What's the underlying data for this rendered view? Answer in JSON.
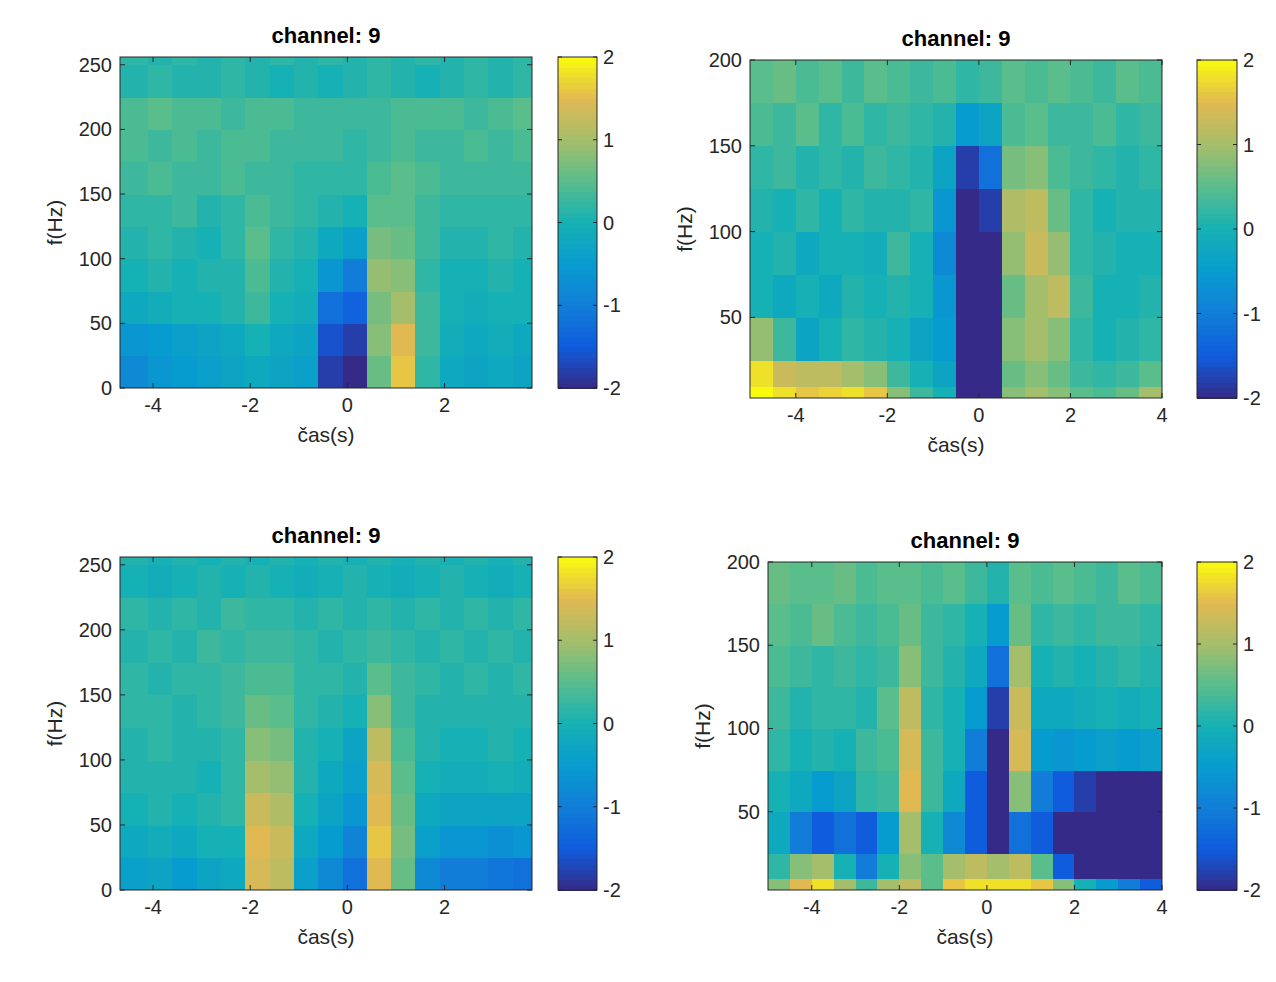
{
  "chart_data": [
    {
      "type": "heatmap",
      "title": "channel: 9",
      "x_label": "čas(s)",
      "y_label": "f(Hz)",
      "xlim": [
        -4.68,
        3.8
      ],
      "ylim": [
        0,
        256
      ],
      "xticks": [
        -4,
        -2,
        0,
        2
      ],
      "yticks": [
        0,
        50,
        100,
        150,
        200,
        250
      ],
      "x_edges": [
        -4.68,
        -4.1,
        -3.6,
        -3.1,
        -2.6,
        -2.1,
        -1.6,
        -1.1,
        -0.6,
        -0.1,
        0.4,
        0.9,
        1.4,
        1.9,
        2.4,
        2.9,
        3.4,
        3.8
      ],
      "y_edges": [
        0,
        25,
        50,
        75,
        100,
        125,
        150,
        175,
        200,
        225,
        250,
        256
      ],
      "cells": [
        [
          -0.8,
          -0.6,
          -0.5,
          -0.4,
          -0.3,
          -0.2,
          -0.3,
          -0.4,
          -1.8,
          -2,
          0.6,
          1.6,
          0.2,
          -0.2,
          -0.3,
          -0.2,
          -0.3
        ],
        [
          -0.6,
          -0.5,
          -0.4,
          -0.3,
          -0.2,
          0,
          -0.2,
          -0.3,
          -1.6,
          -1.8,
          0.8,
          1.5,
          0.3,
          -0.1,
          -0.2,
          -0.1,
          -0.2
        ],
        [
          -0.2,
          -0.1,
          0,
          0,
          0.1,
          0.3,
          0,
          -0.1,
          -1.2,
          -1.4,
          0.7,
          1,
          0.3,
          0,
          -0.1,
          0,
          0
        ],
        [
          0,
          0.1,
          0,
          0.1,
          0.1,
          0.4,
          0.1,
          0,
          -0.6,
          -1,
          0.9,
          0.8,
          0.2,
          0,
          0,
          0.1,
          0
        ],
        [
          0.1,
          0.2,
          0.1,
          0,
          0.2,
          0.5,
          0.2,
          0.1,
          -0.2,
          -0.4,
          0.7,
          0.6,
          0.3,
          0.1,
          0.1,
          0.2,
          0.1
        ],
        [
          0.2,
          0.2,
          0.3,
          0.1,
          0.2,
          0.4,
          0.3,
          0.2,
          0.1,
          0,
          0.5,
          0.5,
          0.3,
          0.2,
          0.2,
          0.2,
          0.2
        ],
        [
          0.3,
          0.4,
          0.3,
          0.3,
          0.4,
          0.3,
          0.3,
          0.2,
          0.2,
          0.2,
          0.4,
          0.5,
          0.4,
          0.3,
          0.3,
          0.3,
          0.3
        ],
        [
          0.4,
          0.3,
          0.4,
          0.3,
          0.4,
          0.4,
          0.3,
          0.3,
          0.3,
          0.2,
          0.3,
          0.4,
          0.3,
          0.3,
          0.4,
          0.3,
          0.4
        ],
        [
          0.4,
          0.5,
          0.4,
          0.4,
          0.3,
          0.4,
          0.4,
          0.3,
          0.3,
          0.3,
          0.3,
          0.4,
          0.4,
          0.4,
          0.3,
          0.4,
          0.5
        ],
        [
          0.1,
          0.2,
          0.1,
          0.1,
          0.2,
          0.1,
          0,
          0.1,
          0,
          0.1,
          0.2,
          0.1,
          0,
          0.1,
          0.2,
          0.1,
          0.2
        ],
        [
          0.2,
          0.1,
          0.2,
          0.1,
          0.2,
          0.1,
          0.2,
          0.1,
          0.2,
          0.1,
          0.2,
          0.1,
          0.2,
          0.1,
          0.2,
          0.1,
          0.2
        ]
      ],
      "clim": [
        -2,
        2
      ],
      "cticks": [
        -2,
        -1,
        0,
        1,
        2
      ]
    },
    {
      "type": "heatmap",
      "title": "channel: 9",
      "x_label": "čas(s)",
      "y_label": "f(Hz)",
      "xlim": [
        -5,
        4
      ],
      "ylim": [
        3,
        200
      ],
      "xticks": [
        -4,
        -2,
        0,
        2,
        4
      ],
      "yticks": [
        50,
        100,
        150,
        200
      ],
      "x_edges": [
        -5,
        -4.5,
        -4,
        -3.5,
        -3,
        -2.5,
        -2,
        -1.5,
        -1,
        -0.5,
        0,
        0.5,
        1,
        1.5,
        2,
        2.5,
        3,
        3.5,
        4
      ],
      "y_edges": [
        3,
        10,
        25,
        50,
        75,
        100,
        125,
        150,
        175,
        200
      ],
      "cells": [
        [
          2,
          1.8,
          1.6,
          1.7,
          1.8,
          1.6,
          0.8,
          0.3,
          0,
          -2,
          -2,
          0.8,
          1,
          0.8,
          0.5,
          0.4,
          0.6,
          1
        ],
        [
          1.8,
          1.3,
          1.2,
          1.2,
          1,
          0.8,
          0.3,
          0,
          -0.3,
          -2,
          -2,
          0.6,
          0.8,
          0.6,
          0.3,
          0.2,
          0.3,
          0.5
        ],
        [
          0.9,
          0.3,
          -0.3,
          0,
          0.2,
          0.1,
          0,
          -0.3,
          -0.5,
          -2,
          -2,
          0.8,
          1,
          0.8,
          0.2,
          0,
          0.1,
          0.2
        ],
        [
          0,
          -0.2,
          0,
          -0.2,
          0.1,
          0,
          0.1,
          0,
          -0.6,
          -2,
          -2,
          0.6,
          1,
          1.2,
          0.3,
          0,
          0,
          0.1
        ],
        [
          0,
          0.1,
          -0.2,
          0,
          0,
          -0.1,
          0.3,
          0,
          -0.8,
          -2,
          -2,
          0.9,
          1.3,
          0.9,
          0.2,
          0.1,
          0,
          0
        ],
        [
          0.1,
          0,
          0.2,
          0,
          0.2,
          0.1,
          0.1,
          0.2,
          -0.6,
          -2,
          -1.8,
          1.1,
          1.2,
          0.6,
          0.2,
          0,
          0.1,
          0.1
        ],
        [
          0.2,
          0.3,
          0.1,
          0.2,
          0.1,
          0.3,
          0.2,
          0.1,
          -0.3,
          -1.8,
          -1.2,
          0.7,
          0.8,
          0.4,
          0.3,
          0.2,
          0.1,
          0.2
        ],
        [
          0.4,
          0.3,
          0.5,
          0.2,
          0.4,
          0.2,
          0.3,
          0.2,
          0.1,
          -0.5,
          -0.3,
          0.4,
          0.5,
          0.3,
          0.3,
          0.4,
          0.2,
          0.3
        ],
        [
          0.5,
          0.6,
          0.4,
          0.5,
          0.3,
          0.5,
          0.4,
          0.3,
          0.4,
          0.2,
          0.3,
          0.5,
          0.4,
          0.5,
          0.4,
          0.3,
          0.5,
          0.4
        ]
      ],
      "clim": [
        -2,
        2
      ],
      "cticks": [
        -2,
        -1,
        0,
        1,
        2
      ]
    },
    {
      "type": "heatmap",
      "title": "channel: 9",
      "x_label": "čas(s)",
      "y_label": "f(Hz)",
      "xlim": [
        -4.68,
        3.8
      ],
      "ylim": [
        0,
        256
      ],
      "xticks": [
        -4,
        -2,
        0,
        2
      ],
      "yticks": [
        0,
        50,
        100,
        150,
        200,
        250
      ],
      "x_edges": [
        -4.68,
        -4.1,
        -3.6,
        -3.1,
        -2.6,
        -2.1,
        -1.6,
        -1.1,
        -0.6,
        -0.1,
        0.4,
        0.9,
        1.4,
        1.9,
        2.4,
        2.9,
        3.4,
        3.8
      ],
      "y_edges": [
        0,
        25,
        50,
        75,
        100,
        125,
        150,
        175,
        200,
        225,
        250,
        256
      ],
      "cells": [
        [
          -0.4,
          -0.3,
          -0.5,
          -0.3,
          -0.2,
          1.4,
          1.2,
          -0.4,
          -0.8,
          -1.2,
          1.5,
          0.6,
          -0.8,
          -1,
          -1,
          -1.1,
          -1.2
        ],
        [
          -0.2,
          -0.1,
          -0.2,
          0,
          0,
          1.5,
          1.3,
          -0.2,
          -0.5,
          -0.9,
          1.6,
          0.7,
          -0.4,
          -0.6,
          -0.6,
          -0.7,
          -0.6
        ],
        [
          0,
          0.1,
          0,
          0.1,
          0.2,
          1.3,
          1.1,
          0,
          -0.3,
          -0.6,
          1.5,
          0.6,
          -0.2,
          -0.3,
          -0.3,
          -0.3,
          -0.3
        ],
        [
          0.1,
          0.1,
          0.1,
          0,
          0.2,
          1,
          0.9,
          0.1,
          -0.2,
          -0.4,
          1.4,
          0.5,
          0,
          -0.1,
          -0.1,
          0,
          -0.1
        ],
        [
          0.1,
          0.2,
          0.1,
          0.1,
          0.2,
          0.8,
          0.7,
          0.1,
          0,
          -0.3,
          1.2,
          0.4,
          0.1,
          0,
          0,
          0.1,
          0
        ],
        [
          0.2,
          0.2,
          0.1,
          0.2,
          0.3,
          0.6,
          0.5,
          0.2,
          0.1,
          0,
          0.8,
          0.3,
          0.1,
          0.1,
          0.1,
          0.1,
          0.1
        ],
        [
          0.2,
          0.1,
          0.2,
          0.2,
          0.3,
          0.4,
          0.4,
          0.2,
          0.2,
          0.1,
          0.5,
          0.3,
          0.2,
          0.1,
          0.2,
          0.1,
          0.2
        ],
        [
          0.1,
          0.2,
          0.1,
          0.3,
          0.2,
          0.3,
          0.3,
          0.2,
          0.1,
          0.2,
          0.3,
          0.2,
          0.1,
          0.2,
          0.1,
          0.2,
          0.1
        ],
        [
          0.2,
          0.1,
          0.2,
          0.1,
          0.3,
          0.2,
          0.2,
          0.1,
          0.2,
          0.1,
          0.2,
          0.1,
          0.2,
          0.1,
          0.2,
          0.1,
          0.2
        ],
        [
          0,
          -0.1,
          0,
          0.1,
          0,
          0.1,
          0,
          -0.1,
          0,
          0.1,
          0,
          -0.1,
          0,
          0.1,
          0,
          -0.1,
          0
        ],
        [
          0.1,
          0,
          0.1,
          0,
          0.1,
          0,
          0.1,
          0,
          0.1,
          0,
          0.1,
          0,
          0.1,
          0,
          0.1,
          0,
          0.1
        ]
      ],
      "clim": [
        -2,
        2
      ],
      "cticks": [
        -2,
        -1,
        0,
        1,
        2
      ]
    },
    {
      "type": "heatmap",
      "title": "channel: 9",
      "x_label": "čas(s)",
      "y_label": "f(Hz)",
      "xlim": [
        -5,
        4
      ],
      "ylim": [
        3,
        200
      ],
      "xticks": [
        -4,
        -2,
        0,
        2,
        4
      ],
      "yticks": [
        50,
        100,
        150,
        200
      ],
      "x_edges": [
        -5,
        -4.5,
        -4,
        -3.5,
        -3,
        -2.5,
        -2,
        -1.5,
        -1,
        -0.5,
        0,
        0.5,
        1,
        1.5,
        2,
        2.5,
        3,
        3.5,
        4
      ],
      "y_edges": [
        3,
        10,
        25,
        50,
        75,
        100,
        125,
        150,
        175,
        200
      ],
      "cells": [
        [
          0.8,
          1.5,
          1.8,
          1,
          0.3,
          1,
          1.2,
          0.5,
          1.6,
          1.8,
          1.8,
          1.8,
          1.6,
          0.8,
          0,
          -0.5,
          -1,
          -1.5
        ],
        [
          0.2,
          0.8,
          1,
          0,
          -1,
          0,
          0.8,
          0.5,
          1,
          1.2,
          1,
          1.2,
          0.5,
          -1.5,
          -2,
          -2,
          -2,
          -2
        ],
        [
          -0.2,
          -1,
          -1.5,
          -1.2,
          -1.5,
          -0.5,
          1,
          0,
          -0.8,
          -1.5,
          -2,
          -1.2,
          -1.5,
          -2,
          -2,
          -2,
          -2,
          -2
        ],
        [
          0,
          -0.2,
          -0.5,
          -0.3,
          0.2,
          0.3,
          1.5,
          0.3,
          -0.2,
          -1.5,
          -2,
          0.8,
          -1,
          -1.5,
          -1.8,
          -2,
          -2,
          -2
        ],
        [
          0.2,
          0,
          0.1,
          0,
          0.3,
          0.4,
          1.4,
          0.3,
          0,
          -1,
          -2,
          1.4,
          -0.5,
          -0.6,
          -0.5,
          -0.4,
          -0.5,
          -0.4
        ],
        [
          0.3,
          0.1,
          0.2,
          0.2,
          0.1,
          0.5,
          1.2,
          0.2,
          0,
          -0.5,
          -1.8,
          1.3,
          -0.2,
          -0.2,
          -0.1,
          0,
          -0.1,
          0
        ],
        [
          0.4,
          0.3,
          0.2,
          0.3,
          0.2,
          0.3,
          0.8,
          0.3,
          0.1,
          -0.2,
          -1.2,
          1,
          0,
          0.1,
          0,
          0.1,
          0.2,
          0.1
        ],
        [
          0.5,
          0.4,
          0.6,
          0.4,
          0.3,
          0.4,
          0.6,
          0.3,
          0.2,
          0,
          -0.5,
          0.6,
          0.2,
          0.3,
          0.2,
          0.3,
          0.3,
          0.2
        ],
        [
          0.6,
          0.5,
          0.5,
          0.6,
          0.4,
          0.5,
          0.5,
          0.4,
          0.5,
          0.3,
          0.1,
          0.5,
          0.4,
          0.5,
          0.4,
          0.3,
          0.5,
          0.4
        ]
      ],
      "clim": [
        -2,
        2
      ],
      "cticks": [
        -2,
        -1,
        0,
        1,
        2
      ]
    }
  ]
}
